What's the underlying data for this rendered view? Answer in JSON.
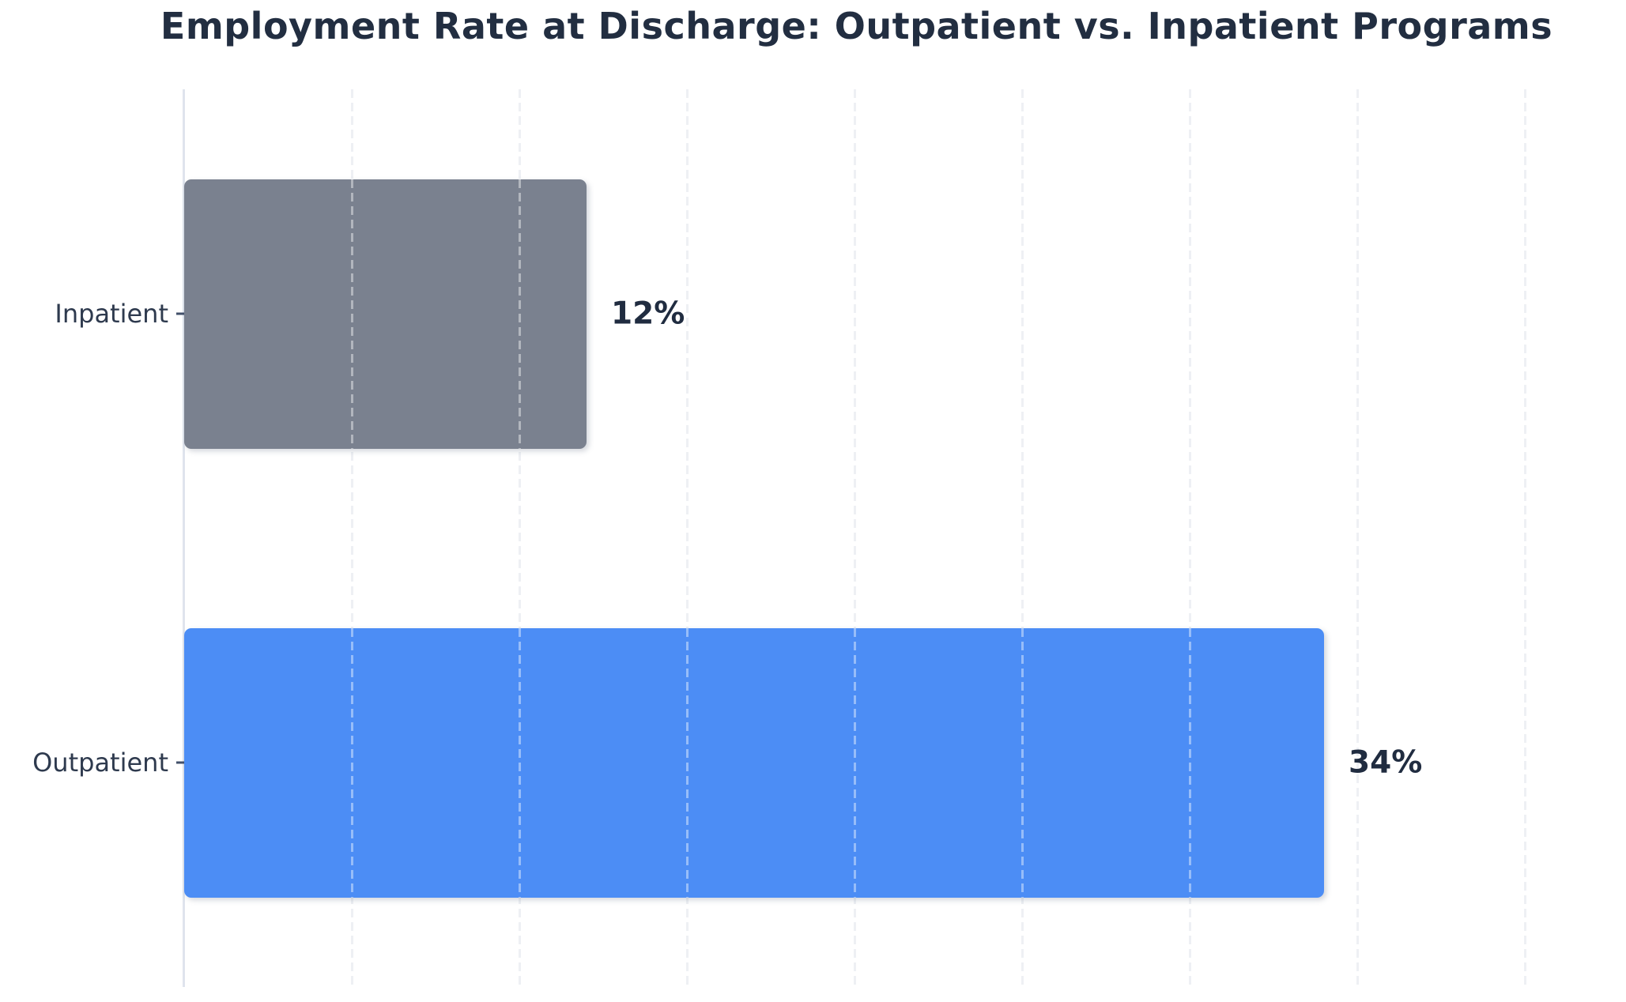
{
  "chart_data": {
    "type": "bar",
    "orientation": "horizontal",
    "title": "Employment Rate at Discharge: Outpatient vs. Inpatient Programs",
    "categories": [
      "Inpatient",
      "Outpatient"
    ],
    "values": [
      12,
      34
    ],
    "value_labels": [
      "12%",
      "34%"
    ],
    "bar_colors": [
      "#7a818f",
      "#4c8df5"
    ],
    "xlabel": "",
    "ylabel": "",
    "xlim": [
      0,
      43
    ],
    "gridline_step": 5,
    "grid": "vertical-dashed",
    "legend_position": "none"
  },
  "style": {
    "background": "#ffffff",
    "title_color": "#222e41",
    "category_label_color": "#2e3a4e",
    "value_label_color": "#202c40",
    "axis_line_color": "#dfe4ed",
    "gridline_color": "#eef0f4",
    "bar_overlay_dash_color": "rgba(255,255,255,0.42)",
    "tick_color": "#42506a"
  }
}
